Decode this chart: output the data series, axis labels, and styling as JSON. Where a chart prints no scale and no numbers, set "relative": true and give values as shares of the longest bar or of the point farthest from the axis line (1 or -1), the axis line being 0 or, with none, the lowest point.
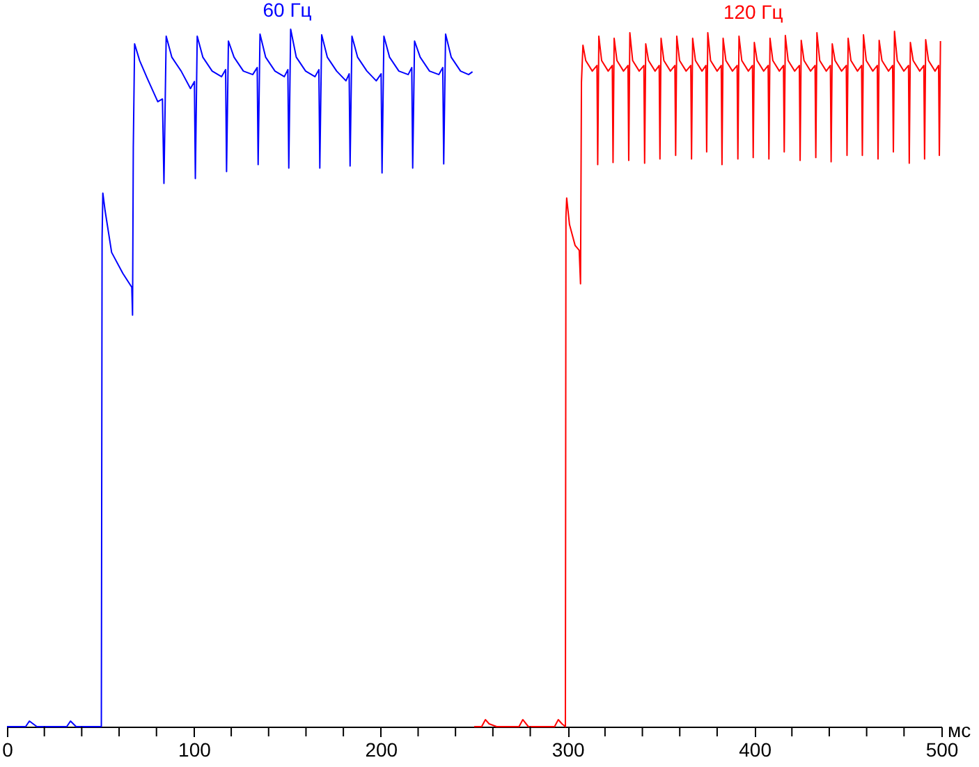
{
  "chart_data": {
    "type": "line",
    "relative": true,
    "xlabel": "мс",
    "xlim": [
      0,
      500
    ],
    "xticks": [
      0,
      {
        "value": 20,
        "label": null
      },
      {
        "value": 40,
        "label": null
      },
      {
        "value": 60,
        "label": null
      },
      {
        "value": 80,
        "label": null
      },
      100,
      {
        "value": 120,
        "label": null
      },
      {
        "value": 140,
        "label": null
      },
      {
        "value": 160,
        "label": null
      },
      {
        "value": 180,
        "label": null
      },
      200,
      {
        "value": 220,
        "label": null
      },
      {
        "value": 240,
        "label": null
      },
      {
        "value": 260,
        "label": null
      },
      {
        "value": 280,
        "label": null
      },
      300,
      {
        "value": 320,
        "label": null
      },
      {
        "value": 340,
        "label": null
      },
      {
        "value": 360,
        "label": null
      },
      {
        "value": 380,
        "label": null
      },
      400,
      {
        "value": 420,
        "label": null
      },
      {
        "value": 440,
        "label": null
      },
      {
        "value": 460,
        "label": null
      },
      {
        "value": 480,
        "label": null
      },
      500
    ],
    "series": [
      {
        "name": "60 Гц",
        "color": "#0000ff",
        "x": [
          0,
          10,
          12,
          14,
          16,
          32,
          34,
          37,
          50.5,
          50.9,
          51.3,
          52.5,
          56,
          62,
          66.8,
          67.2,
          67.6,
          68.3,
          71,
          75,
          80.7,
          83.2,
          84,
          85.2,
          88.2,
          93.2,
          98.2,
          100.3,
          100.8,
          101.8,
          104.8,
          109.8,
          114.8,
          117,
          117.5,
          118.5,
          121.5,
          126.5,
          131.5,
          133.9,
          134.4,
          135.4,
          138.4,
          143.4,
          148.4,
          150.3,
          150.8,
          151.8,
          154.8,
          159.8,
          164.8,
          166.9,
          167.4,
          168.4,
          171.4,
          176.4,
          181.4,
          183.1,
          183.6,
          184.6,
          187.6,
          192.6,
          197.6,
          200.2,
          200.7,
          201.7,
          204.7,
          209.7,
          214.7,
          216.6,
          217.1,
          218.1,
          221.1,
          226.1,
          231.1,
          233.2,
          233.7,
          234.7,
          237.7,
          242.7,
          247,
          249.1
        ],
        "values": [
          0,
          0,
          0.008,
          0.004,
          0,
          0,
          0.008,
          0,
          0,
          0.7,
          0.765,
          0.74,
          0.68,
          0.65,
          0.63,
          0.59,
          0.83,
          0.979,
          0.955,
          0.93,
          0.896,
          0.9,
          0.779,
          0.99,
          0.96,
          0.94,
          0.915,
          0.925,
          0.786,
          0.99,
          0.96,
          0.94,
          0.932,
          0.942,
          0.796,
          0.983,
          0.96,
          0.94,
          0.935,
          0.945,
          0.806,
          0.993,
          0.96,
          0.94,
          0.932,
          0.942,
          0.801,
          1,
          0.96,
          0.94,
          0.932,
          0.942,
          0.801,
          0.992,
          0.96,
          0.94,
          0.926,
          0.936,
          0.804,
          0.99,
          0.96,
          0.94,
          0.926,
          0.936,
          0.794,
          0.99,
          0.96,
          0.94,
          0.935,
          0.945,
          0.801,
          0.983,
          0.96,
          0.94,
          0.935,
          0.945,
          0.807,
          0.993,
          0.96,
          0.94,
          0.935,
          0.939
        ]
      },
      {
        "name": "120 Гц",
        "color": "#ff0000",
        "x": [
          250,
          254,
          256,
          258,
          262,
          274,
          276,
          279,
          293,
          295,
          297,
          298.8,
          299.1,
          299.5,
          301,
          304,
          306.2,
          306.9,
          307.4,
          308.2,
          309.7,
          313.2,
          315.7,
          316.1,
          316.7,
          318.2,
          321.7,
          323.9,
          324.3,
          324.9,
          326.4,
          329.9,
          332.3,
          332.7,
          333.3,
          334.8,
          338.3,
          340.8,
          341.2,
          341.8,
          343.3,
          346.8,
          349,
          349.4,
          350,
          351.5,
          355,
          357.4,
          357.8,
          358.4,
          359.9,
          363.4,
          365.9,
          366.3,
          366.9,
          368.4,
          371.9,
          374,
          374.4,
          375,
          376.5,
          380,
          382.2,
          382.6,
          383.2,
          384.7,
          388.2,
          390.7,
          391.1,
          391.7,
          393.2,
          396.7,
          398.9,
          399.3,
          399.9,
          401.4,
          404.9,
          407.3,
          407.7,
          408.3,
          409.8,
          413.3,
          415.5,
          415.9,
          416.5,
          418,
          421.5,
          424,
          424.4,
          425,
          426.5,
          430,
          432.4,
          432.8,
          433.4,
          434.9,
          438.4,
          440.6,
          441,
          441.6,
          443.1,
          446.6,
          449.1,
          449.5,
          450.1,
          451.6,
          455.1,
          457.3,
          457.7,
          458.3,
          459.8,
          463.3,
          465.7,
          466.1,
          466.7,
          468.2,
          471.7,
          473.9,
          474.3,
          474.9,
          476.4,
          479.9,
          482.4,
          482.8,
          483.4,
          484.9,
          488.4,
          490.6,
          491,
          491.6,
          493.1,
          496.6,
          498.5,
          498.9,
          499.5
        ],
        "values": [
          0,
          0,
          0.01,
          0.004,
          0,
          0,
          0.01,
          0,
          0,
          0.01,
          0.004,
          0,
          0.731,
          0.758,
          0.72,
          0.69,
          0.683,
          0.635,
          0.924,
          0.977,
          0.955,
          0.94,
          0.948,
          0.806,
          0.99,
          0.955,
          0.94,
          0.948,
          0.809,
          0.987,
          0.955,
          0.94,
          0.948,
          0.812,
          0.995,
          0.955,
          0.94,
          0.948,
          0.808,
          0.979,
          0.955,
          0.94,
          0.948,
          0.814,
          0.987,
          0.955,
          0.94,
          0.948,
          0.819,
          0.99,
          0.955,
          0.94,
          0.948,
          0.814,
          0.987,
          0.955,
          0.94,
          0.948,
          0.824,
          0.995,
          0.955,
          0.94,
          0.948,
          0.806,
          0.987,
          0.955,
          0.94,
          0.948,
          0.814,
          0.99,
          0.955,
          0.94,
          0.948,
          0.816,
          0.981,
          0.955,
          0.94,
          0.948,
          0.814,
          0.987,
          0.955,
          0.94,
          0.948,
          0.824,
          0.991,
          0.955,
          0.94,
          0.948,
          0.812,
          0.984,
          0.955,
          0.94,
          0.948,
          0.816,
          0.995,
          0.955,
          0.94,
          0.948,
          0.81,
          0.979,
          0.955,
          0.94,
          0.948,
          0.819,
          0.987,
          0.955,
          0.94,
          0.948,
          0.819,
          0.992,
          0.955,
          0.94,
          0.948,
          0.814,
          0.984,
          0.955,
          0.94,
          0.948,
          0.824,
          0.997,
          0.955,
          0.94,
          0.948,
          0.808,
          0.981,
          0.955,
          0.94,
          0.948,
          0.814,
          0.985,
          0.955,
          0.94,
          0.948,
          0.819,
          0.983
        ]
      }
    ]
  }
}
